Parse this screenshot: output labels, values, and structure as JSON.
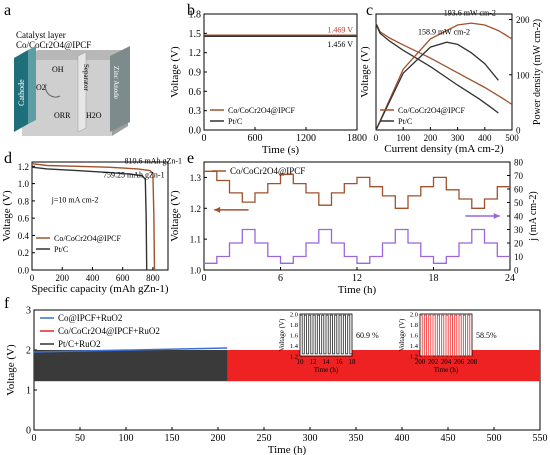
{
  "panel_labels": [
    "a",
    "b",
    "c",
    "d",
    "e",
    "f"
  ],
  "schematic": {
    "catalyst_layer": "Catalyst layer",
    "catalyst": "Co/CoCr2O4@IPCF",
    "cathode": "Cathode",
    "separator": "Separator",
    "zinc_anode": "Zinc Anode",
    "oh": "OH",
    "o2": "O2",
    "h2o": "H2O",
    "orr": "ORR"
  },
  "colors": {
    "co": "#a0522d",
    "pt": "#333333",
    "ipcf": "#3b6fd6",
    "ruo2": "#ee2222",
    "pt_ru": "#444444",
    "j": "#9966dd",
    "ann": "#c0392b"
  },
  "chart_data": [
    {
      "id": "b",
      "type": "line",
      "xlabel": "Time (s)",
      "ylabel": "Voltage (V)",
      "xlim": [
        0,
        1800
      ],
      "ylim": [
        0,
        1.8
      ],
      "xticks": [
        0,
        600,
        1200,
        1800
      ],
      "yticks": [
        0.0,
        0.3,
        0.6,
        0.9,
        1.2,
        1.5,
        1.8
      ],
      "series": [
        {
          "name": "Co/CoCr2O4@IPCF",
          "x": [
            0,
            1800
          ],
          "y": [
            1.469,
            1.469
          ],
          "label": "1.469 V"
        },
        {
          "name": "Pt/C",
          "x": [
            0,
            1800
          ],
          "y": [
            1.456,
            1.456
          ],
          "label": "1.456 V"
        }
      ],
      "legend": "bottom-left"
    },
    {
      "id": "c",
      "type": "line",
      "xlabel": "Current density (mA cm-2)",
      "ylabel": "Voltage (V)",
      "y2label": "Power density (mW cm-2)",
      "xlim": [
        0,
        500
      ],
      "ylim": [
        0,
        1.5
      ],
      "y2lim": [
        0,
        210
      ],
      "xticks": [
        0,
        100,
        200,
        300,
        400,
        500
      ],
      "yticks": [],
      "y2ticks": [
        0,
        100,
        200
      ],
      "series": [
        {
          "name": "Co/CoCr2O4@IPCF",
          "axis": "left",
          "x": [
            0,
            15,
            50,
            100,
            200,
            300,
            400,
            470,
            500
          ],
          "y": [
            1.38,
            1.27,
            1.19,
            1.1,
            0.93,
            0.74,
            0.55,
            0.4,
            0.33
          ]
        },
        {
          "name": "Pt/C",
          "axis": "left",
          "x": [
            0,
            15,
            50,
            100,
            200,
            300,
            380,
            420,
            450
          ],
          "y": [
            1.37,
            1.25,
            1.15,
            1.03,
            0.82,
            0.58,
            0.4,
            0.3,
            0.22
          ]
        },
        {
          "name": "Co/CoCr2O4@IPCF power",
          "axis": "right",
          "x": [
            0,
            100,
            200,
            300,
            350,
            400,
            450,
            500
          ],
          "y": [
            0,
            110,
            165,
            190,
            193.6,
            190,
            180,
            165
          ]
        },
        {
          "name": "Pt/C power",
          "axis": "right",
          "x": [
            0,
            100,
            200,
            260,
            300,
            350,
            400,
            450
          ],
          "y": [
            0,
            103,
            150,
            158.9,
            155,
            140,
            120,
            90
          ]
        }
      ],
      "annotations": [
        "193.6 mW cm-2",
        "158.9 mW cm-2"
      ],
      "legend": "bottom-left"
    },
    {
      "id": "d",
      "type": "line",
      "xlabel": "Specific capacity (mAh gZn-1)",
      "ylabel": "Voltage (V)",
      "xlim": [
        0,
        900
      ],
      "ylim": [
        0,
        1.25
      ],
      "xticks": [
        0,
        200,
        400,
        600,
        800
      ],
      "yticks": [
        0.0,
        0.2,
        0.4,
        0.6,
        0.8,
        1.0,
        1.2
      ],
      "series": [
        {
          "name": "Co/CoCr2O4@IPCF",
          "x": [
            0,
            100,
            300,
            500,
            700,
            780,
            800,
            807,
            810.6
          ],
          "y": [
            1.23,
            1.21,
            1.2,
            1.19,
            1.17,
            1.15,
            1.12,
            0.6,
            0.0
          ]
        },
        {
          "name": "Pt/C",
          "x": [
            0,
            100,
            300,
            500,
            650,
            730,
            750,
            756,
            759.25
          ],
          "y": [
            1.19,
            1.17,
            1.15,
            1.13,
            1.11,
            1.09,
            1.05,
            0.6,
            0.0
          ]
        }
      ],
      "annotations": [
        "810.6 mAh gZn-1",
        "759.25 mAh gZn-1",
        "j=10 mA cm-2"
      ],
      "legend": "bottom-left"
    },
    {
      "id": "e",
      "type": "line",
      "xlabel": "Time (h)",
      "ylabel": "Voltage (V)",
      "y2label": "j (mA cm-2)",
      "xlim": [
        0,
        24
      ],
      "ylim": [
        1.0,
        1.35
      ],
      "y2lim": [
        0,
        80
      ],
      "xticks": [
        0,
        6,
        12,
        18,
        24
      ],
      "yticks": [
        1.0,
        1.1,
        1.2,
        1.3
      ],
      "y2ticks": [
        0,
        10,
        20,
        30,
        40,
        50,
        60,
        70,
        80
      ],
      "steps_j": [
        5,
        10,
        20,
        30,
        20,
        10,
        5,
        10,
        20,
        30,
        20,
        10,
        5,
        10,
        20,
        30,
        20,
        10,
        5,
        10,
        20,
        30,
        20,
        10
      ],
      "series": [
        {
          "name": "Co/CoCr2O4@IPCF",
          "axis": "left",
          "x": [
            0,
            1,
            2,
            3,
            4,
            5,
            6,
            7,
            8,
            9,
            10,
            11,
            12,
            13,
            14,
            15,
            16,
            17,
            18,
            19,
            20,
            21,
            22,
            23
          ],
          "y": [
            1.32,
            1.29,
            1.25,
            1.22,
            1.25,
            1.28,
            1.31,
            1.28,
            1.25,
            1.21,
            1.25,
            1.28,
            1.3,
            1.27,
            1.24,
            1.2,
            1.24,
            1.27,
            1.3,
            1.26,
            1.23,
            1.2,
            1.23,
            1.27
          ]
        },
        {
          "name": "j",
          "axis": "right",
          "x": [
            0,
            1,
            2,
            3,
            4,
            5,
            6,
            7,
            8,
            9,
            10,
            11,
            12,
            13,
            14,
            15,
            16,
            17,
            18,
            19,
            20,
            21,
            22,
            23
          ],
          "y": [
            5,
            10,
            20,
            30,
            20,
            10,
            5,
            10,
            20,
            30,
            20,
            10,
            5,
            10,
            20,
            30,
            20,
            10,
            5,
            10,
            20,
            30,
            20,
            10
          ]
        }
      ],
      "legend": "top-left"
    },
    {
      "id": "f",
      "type": "line",
      "xlabel": "Time (h)",
      "ylabel": "Voltage (V)",
      "xlim": [
        0,
        550
      ],
      "ylim": [
        0,
        3
      ],
      "xticks": [
        0,
        50,
        100,
        150,
        200,
        250,
        300,
        350,
        400,
        450,
        500,
        550
      ],
      "yticks": [
        0,
        1,
        2,
        3
      ],
      "series": [
        {
          "name": "Co@IPCF+RuO2",
          "x": [
            0,
            210
          ],
          "y": [
            1.95,
            2.05
          ]
        },
        {
          "name": "Co/CoCr2O4@IPCF+RuO2",
          "x": [
            210,
            550
          ],
          "charge": 2.0,
          "discharge": 1.22
        },
        {
          "name": "Pt/C+RuO2",
          "x": [
            0,
            212
          ],
          "charge": 2.0,
          "discharge": 1.22
        }
      ],
      "legend": "top-left",
      "insets": [
        {
          "xlim": [
            10,
            18
          ],
          "xticks": [
            10,
            12,
            14,
            16,
            18
          ],
          "ylim": [
            1.2,
            2.0
          ],
          "yticks": [
            1.2,
            1.4,
            1.6,
            1.8,
            2.0
          ],
          "xlabel": "Time (h)",
          "ylabel": "Voltage (V)",
          "label": "60.9 %",
          "charge": 1.98,
          "discharge": 1.24
        },
        {
          "xlim": [
            200,
            208
          ],
          "xticks": [
            200,
            202,
            204,
            206,
            208
          ],
          "ylim": [
            1.2,
            2.0
          ],
          "yticks": [
            1.2,
            1.4,
            1.6,
            1.8,
            2.0
          ],
          "xlabel": "Time (h)",
          "ylabel": "Voltage (V)",
          "label": "58.5%",
          "charge": 1.98,
          "discharge": 1.2
        }
      ]
    }
  ]
}
